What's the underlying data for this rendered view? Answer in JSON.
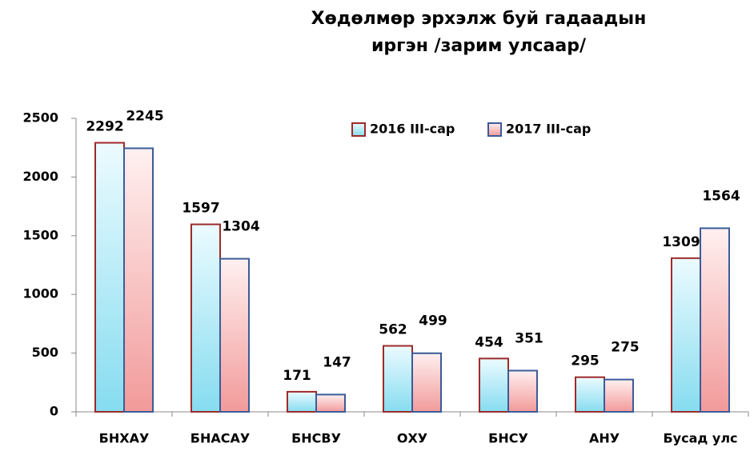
{
  "chart_data": {
    "type": "bar",
    "title": [
      "Хөдөлмөр эрхэлж буй гадаадын",
      "иргэн /зарим улсаар/"
    ],
    "categories": [
      "БНХАУ",
      "БНАСАУ",
      "БНСВУ",
      "ОХУ",
      "БНСУ",
      "АНУ",
      "Бусад улс"
    ],
    "series": [
      {
        "name": "2016 III-сар",
        "color": "#9e2a2a",
        "fill": [
          "#ecfbff",
          "#86dcf0"
        ],
        "values": [
          2292,
          1597,
          171,
          562,
          454,
          295,
          1309
        ]
      },
      {
        "name": "2017 III-сар",
        "color": "#3b5b9a",
        "fill": [
          "#fff0f0",
          "#f29a9a"
        ],
        "values": [
          2245,
          1304,
          147,
          499,
          351,
          275,
          1564
        ]
      }
    ],
    "ylim": [
      0,
      2500
    ],
    "yticks": [
      0,
      500,
      1000,
      1500,
      2000,
      2500
    ],
    "legend": "top"
  }
}
